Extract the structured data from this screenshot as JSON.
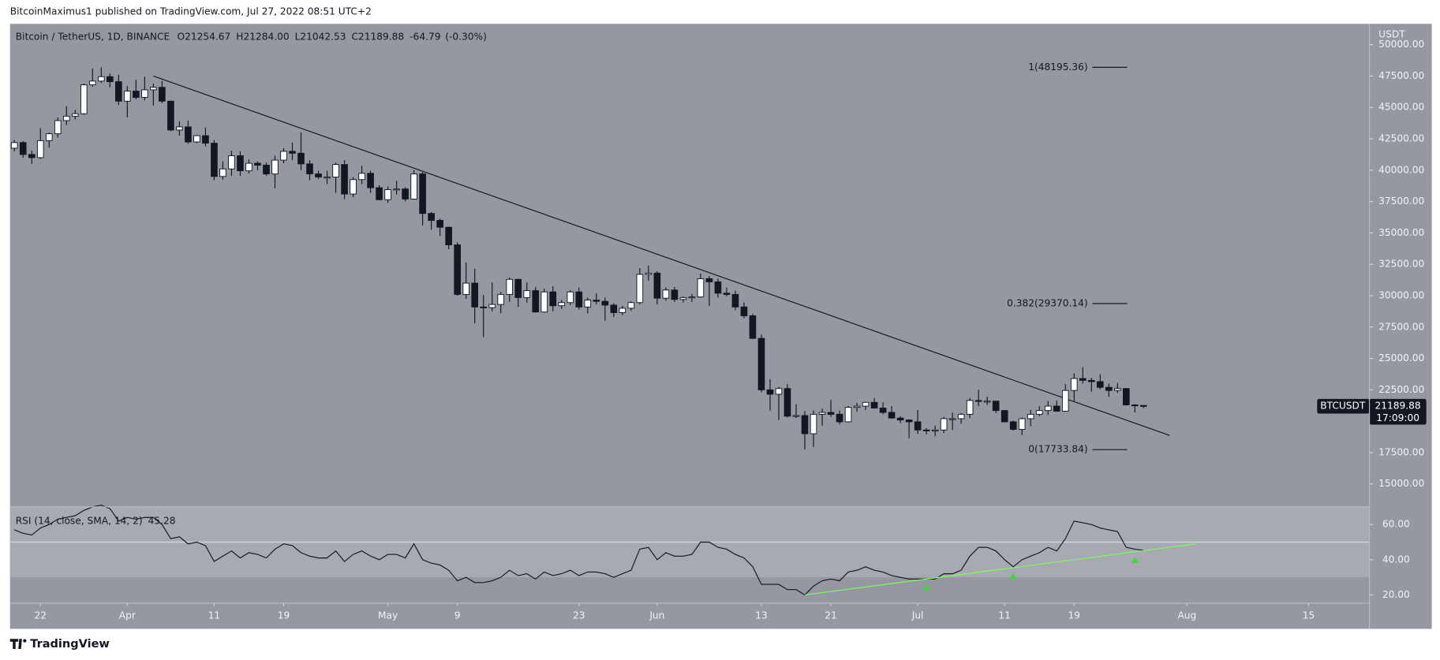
{
  "header": {
    "published": "BitcoinMaximus1 published on TradingView.com, Jul 27, 2022 08:51 UTC+2"
  },
  "footer": {
    "brand": "TradingView"
  },
  "chart_data": {
    "type": "candlestick",
    "title": "Bitcoin / TetherUS, 1D, BINANCE",
    "legend": {
      "labels": [
        "O",
        "H",
        "L",
        "C"
      ],
      "values": [
        "21254.67",
        "21284.00",
        "21042.53",
        "21189.88"
      ],
      "change": -64.79,
      "change_percent": {
        "value": -0.3,
        "label": "(-0.30%)"
      }
    },
    "symbol": "BTCUSDT",
    "last_price": "21189.88",
    "countdown": "17:09:00",
    "currency": "USDT",
    "xlim": [
      "2022-03-18T12:00:00",
      "2022-08-22T00:00:00"
    ],
    "xticks": [
      {
        "value": "2022-03-22",
        "label": "22"
      },
      {
        "value": "2022-04-01",
        "label": "Apr"
      },
      {
        "value": "2022-04-11",
        "label": "11"
      },
      {
        "value": "2022-04-19",
        "label": "19"
      },
      {
        "value": "2022-05-01",
        "label": "May"
      },
      {
        "value": "2022-05-09",
        "label": "9"
      },
      {
        "value": "2022-05-23",
        "label": "23"
      },
      {
        "value": "2022-06-01",
        "label": "Jun"
      },
      {
        "value": "2022-06-13",
        "label": "13"
      },
      {
        "value": "2022-06-21",
        "label": "21"
      },
      {
        "value": "2022-07-01",
        "label": "Jul"
      },
      {
        "value": "2022-07-11",
        "label": "11"
      },
      {
        "value": "2022-07-19",
        "label": "19"
      },
      {
        "value": "2022-08-01",
        "label": "Aug"
      },
      {
        "value": "2022-08-15",
        "label": "15"
      }
    ],
    "ylim": [
      13170,
      51660
    ],
    "yticks": [
      {
        "value": 15000,
        "label": "15000.00"
      },
      {
        "value": 17500,
        "label": "17500.00"
      },
      {
        "value": 20000,
        "label": "20000.00"
      },
      {
        "value": 22500,
        "label": "22500.00"
      },
      {
        "value": 25000,
        "label": "25000.00"
      },
      {
        "value": 27500,
        "label": "27500.00"
      },
      {
        "value": 30000,
        "label": "30000.00"
      },
      {
        "value": 32500,
        "label": "32500.00"
      },
      {
        "value": 35000,
        "label": "35000.00"
      },
      {
        "value": 37500,
        "label": "37500.00"
      },
      {
        "value": 40000,
        "label": "40000.00"
      },
      {
        "value": 42500,
        "label": "42500.00"
      },
      {
        "value": 45000,
        "label": "45000.00"
      },
      {
        "value": 47500,
        "label": "47500.00"
      },
      {
        "value": 50000,
        "label": "50000.00"
      }
    ],
    "up_color": "#ffffff",
    "down_color": "#131722",
    "background": "#9598a1",
    "x": [
      "2022-03-19",
      "2022-03-20",
      "2022-03-21",
      "2022-03-22",
      "2022-03-23",
      "2022-03-24",
      "2022-03-25",
      "2022-03-26",
      "2022-03-27",
      "2022-03-28",
      "2022-03-29",
      "2022-03-30",
      "2022-03-31",
      "2022-04-01",
      "2022-04-02",
      "2022-04-03",
      "2022-04-04",
      "2022-04-05",
      "2022-04-06",
      "2022-04-07",
      "2022-04-08",
      "2022-04-09",
      "2022-04-10",
      "2022-04-11",
      "2022-04-12",
      "2022-04-13",
      "2022-04-14",
      "2022-04-15",
      "2022-04-16",
      "2022-04-17",
      "2022-04-18",
      "2022-04-19",
      "2022-04-20",
      "2022-04-21",
      "2022-04-22",
      "2022-04-23",
      "2022-04-24",
      "2022-04-25",
      "2022-04-26",
      "2022-04-27",
      "2022-04-28",
      "2022-04-29",
      "2022-04-30",
      "2022-05-01",
      "2022-05-02",
      "2022-05-03",
      "2022-05-04",
      "2022-05-05",
      "2022-05-06",
      "2022-05-07",
      "2022-05-08",
      "2022-05-09",
      "2022-05-10",
      "2022-05-11",
      "2022-05-12",
      "2022-05-13",
      "2022-05-14",
      "2022-05-15",
      "2022-05-16",
      "2022-05-17",
      "2022-05-18",
      "2022-05-19",
      "2022-05-20",
      "2022-05-21",
      "2022-05-22",
      "2022-05-23",
      "2022-05-24",
      "2022-05-25",
      "2022-05-26",
      "2022-05-27",
      "2022-05-28",
      "2022-05-29",
      "2022-05-30",
      "2022-05-31",
      "2022-06-01",
      "2022-06-02",
      "2022-06-03",
      "2022-06-04",
      "2022-06-05",
      "2022-06-06",
      "2022-06-07",
      "2022-06-08",
      "2022-06-09",
      "2022-06-10",
      "2022-06-11",
      "2022-06-12",
      "2022-06-13",
      "2022-06-14",
      "2022-06-15",
      "2022-06-16",
      "2022-06-17",
      "2022-06-18",
      "2022-06-19",
      "2022-06-20",
      "2022-06-21",
      "2022-06-22",
      "2022-06-23",
      "2022-06-24",
      "2022-06-25",
      "2022-06-26",
      "2022-06-27",
      "2022-06-28",
      "2022-06-29",
      "2022-06-30",
      "2022-07-01",
      "2022-07-02",
      "2022-07-03",
      "2022-07-04",
      "2022-07-05",
      "2022-07-06",
      "2022-07-07",
      "2022-07-08",
      "2022-07-09",
      "2022-07-10",
      "2022-07-11",
      "2022-07-12",
      "2022-07-13",
      "2022-07-14",
      "2022-07-15",
      "2022-07-16",
      "2022-07-17",
      "2022-07-18",
      "2022-07-19",
      "2022-07-20",
      "2022-07-21",
      "2022-07-22",
      "2022-07-23",
      "2022-07-24",
      "2022-07-25",
      "2022-07-26",
      "2022-07-27"
    ],
    "ohlc": [
      [
        41750,
        42400,
        41500,
        42200
      ],
      [
        42200,
        42300,
        41000,
        41250
      ],
      [
        41250,
        41550,
        40500,
        41000
      ],
      [
        41000,
        43350,
        40900,
        42350
      ],
      [
        42350,
        43000,
        41800,
        42900
      ],
      [
        42900,
        44200,
        42600,
        43950
      ],
      [
        43950,
        45100,
        43600,
        44300
      ],
      [
        44300,
        44800,
        44050,
        44500
      ],
      [
        44500,
        46900,
        44400,
        46800
      ],
      [
        46800,
        48100,
        46650,
        47100
      ],
      [
        47100,
        48195,
        46950,
        47450
      ],
      [
        47450,
        47700,
        46600,
        47050
      ],
      [
        47050,
        47600,
        45200,
        45500
      ],
      [
        45500,
        46700,
        44200,
        46300
      ],
      [
        46300,
        47200,
        45650,
        45800
      ],
      [
        45800,
        47450,
        45550,
        46400
      ],
      [
        46400,
        46900,
        45150,
        46600
      ],
      [
        46600,
        47100,
        45350,
        45500
      ],
      [
        45500,
        45500,
        43100,
        43200
      ],
      [
        43200,
        43900,
        42750,
        43450
      ],
      [
        43450,
        43950,
        42100,
        42250
      ],
      [
        42250,
        42800,
        42150,
        42750
      ],
      [
        42750,
        43400,
        41900,
        42150
      ],
      [
        42150,
        42400,
        39200,
        39500
      ],
      [
        39500,
        40700,
        39250,
        40100
      ],
      [
        40100,
        41550,
        39550,
        41150
      ],
      [
        41150,
        41500,
        39550,
        39950
      ],
      [
        39950,
        40850,
        39750,
        40550
      ],
      [
        40550,
        40700,
        40000,
        40400
      ],
      [
        40400,
        40600,
        39550,
        39700
      ],
      [
        39700,
        41150,
        38550,
        40800
      ],
      [
        40800,
        41750,
        40550,
        41500
      ],
      [
        41500,
        42200,
        40800,
        41350
      ],
      [
        41350,
        43000,
        40000,
        40500
      ],
      [
        40500,
        40800,
        39200,
        39700
      ],
      [
        39700,
        39950,
        39300,
        39450
      ],
      [
        39450,
        39950,
        38900,
        39450
      ],
      [
        39450,
        40600,
        38200,
        40450
      ],
      [
        40450,
        40800,
        37700,
        38100
      ],
      [
        38100,
        39450,
        37850,
        39250
      ],
      [
        39250,
        40350,
        38900,
        39750
      ],
      [
        39750,
        39950,
        38200,
        38600
      ],
      [
        38600,
        38800,
        37600,
        37650
      ],
      [
        37650,
        38700,
        37400,
        38450
      ],
      [
        38450,
        39150,
        38050,
        38500
      ],
      [
        38500,
        38650,
        37500,
        37700
      ],
      [
        37700,
        40000,
        37650,
        39700
      ],
      [
        39700,
        39850,
        35600,
        36550
      ],
      [
        36550,
        36650,
        35250,
        36000
      ],
      [
        36000,
        36150,
        34750,
        35450
      ],
      [
        35450,
        35500,
        33700,
        34050
      ],
      [
        34050,
        34250,
        30000,
        30100
      ],
      [
        30100,
        32650,
        29750,
        31000
      ],
      [
        31000,
        32150,
        27800,
        29100
      ],
      [
        29100,
        30050,
        26700,
        29050
      ],
      [
        29050,
        31050,
        28750,
        29300
      ],
      [
        29300,
        30300,
        28600,
        30100
      ],
      [
        30100,
        31450,
        29500,
        31300
      ],
      [
        31300,
        31350,
        29100,
        29850
      ],
      [
        29850,
        31050,
        29450,
        30400
      ],
      [
        30400,
        30700,
        28650,
        28700
      ],
      [
        28700,
        30550,
        28650,
        30300
      ],
      [
        30300,
        30750,
        28750,
        29200
      ],
      [
        29200,
        29650,
        28950,
        29450
      ],
      [
        29450,
        30450,
        29250,
        30300
      ],
      [
        30300,
        30650,
        28900,
        29100
      ],
      [
        29100,
        29850,
        28600,
        29650
      ],
      [
        29650,
        30200,
        29300,
        29550
      ],
      [
        29550,
        29850,
        28000,
        29250
      ],
      [
        29250,
        29400,
        28300,
        28650
      ],
      [
        28650,
        29200,
        28450,
        29000
      ],
      [
        29000,
        29550,
        28800,
        29450
      ],
      [
        29450,
        32200,
        29300,
        31700
      ],
      [
        31700,
        32400,
        31200,
        31800
      ],
      [
        31800,
        31950,
        29300,
        29800
      ],
      [
        29800,
        30650,
        29600,
        30450
      ],
      [
        30450,
        30700,
        29500,
        29700
      ],
      [
        29700,
        29950,
        29450,
        29850
      ],
      [
        29850,
        30150,
        29500,
        29900
      ],
      [
        29900,
        31750,
        29850,
        31350
      ],
      [
        31350,
        31550,
        29200,
        31100
      ],
      [
        31100,
        31350,
        29850,
        30200
      ],
      [
        30200,
        30650,
        29950,
        30100
      ],
      [
        30100,
        30400,
        28850,
        29100
      ],
      [
        29100,
        29450,
        28200,
        28400
      ],
      [
        28400,
        28550,
        26550,
        26600
      ],
      [
        26600,
        26900,
        22300,
        22500
      ],
      [
        22500,
        23350,
        20850,
        22150
      ],
      [
        22150,
        22750,
        20100,
        22600
      ],
      [
        22600,
        22950,
        20300,
        20400
      ],
      [
        20400,
        21350,
        20250,
        20450
      ],
      [
        20450,
        20800,
        17734,
        19000
      ],
      [
        19000,
        20850,
        17950,
        20550
      ],
      [
        20550,
        21000,
        19650,
        20700
      ],
      [
        20700,
        21700,
        20350,
        20550
      ],
      [
        20550,
        20850,
        19750,
        19950
      ],
      [
        19950,
        21200,
        19900,
        21100
      ],
      [
        21100,
        21450,
        20750,
        21200
      ],
      [
        21200,
        21550,
        20900,
        21500
      ],
      [
        21500,
        21850,
        21000,
        21050
      ],
      [
        21050,
        21500,
        20550,
        20700
      ],
      [
        20700,
        21200,
        20200,
        20250
      ],
      [
        20250,
        20400,
        19850,
        20100
      ],
      [
        20100,
        20150,
        18650,
        19950
      ],
      [
        19950,
        20900,
        19000,
        19300
      ],
      [
        19300,
        19450,
        18950,
        19250
      ],
      [
        19250,
        19650,
        18800,
        19300
      ],
      [
        19300,
        20350,
        19050,
        20200
      ],
      [
        20200,
        20700,
        19300,
        20200
      ],
      [
        20200,
        20650,
        19800,
        20550
      ],
      [
        20550,
        21850,
        20250,
        21650
      ],
      [
        21650,
        22500,
        21200,
        21600
      ],
      [
        21600,
        21950,
        21300,
        21600
      ],
      [
        21600,
        21600,
        20650,
        20850
      ],
      [
        20850,
        20900,
        19900,
        19950
      ],
      [
        19950,
        20050,
        19250,
        19350
      ],
      [
        19350,
        20300,
        18900,
        20200
      ],
      [
        20200,
        20900,
        19600,
        20550
      ],
      [
        20550,
        21200,
        20400,
        20850
      ],
      [
        20850,
        21600,
        20500,
        21200
      ],
      [
        21200,
        21650,
        20750,
        20800
      ],
      [
        20800,
        22950,
        20750,
        22450
      ],
      [
        22450,
        23800,
        21600,
        23400
      ],
      [
        23400,
        24300,
        23000,
        23250
      ],
      [
        23250,
        23450,
        22350,
        23150
      ],
      [
        23150,
        23750,
        22550,
        22700
      ],
      [
        22700,
        23000,
        21950,
        22450
      ],
      [
        22450,
        23050,
        22250,
        22600
      ],
      [
        22600,
        22650,
        21250,
        21300
      ],
      [
        21300,
        21350,
        20700,
        21254.67
      ],
      [
        21254.67,
        21284,
        21042.53,
        21189.88
      ]
    ],
    "trendline": {
      "start": [
        "2022-04-04",
        47500
      ],
      "end": [
        "2022-07-30",
        18866
      ]
    },
    "fib_levels": [
      {
        "label": "1(48195.36)",
        "value": 48195.36
      },
      {
        "label": "0.382(29370.14)",
        "value": 29370.14
      },
      {
        "label": "0(17733.84)",
        "value": 17733.84
      }
    ],
    "rsi": {
      "label": "RSI (14, close, SMA, 14, 2)",
      "color": "#131722",
      "ylim": [
        15.3,
        70
      ],
      "yticks": [
        {
          "value": 20,
          "label": "20.00"
        },
        {
          "value": 40,
          "label": "40.00"
        },
        {
          "value": 60,
          "label": "60.00"
        }
      ],
      "band": [
        30,
        70
      ],
      "midline": 50,
      "values": [
        57,
        55,
        54,
        58,
        60,
        63,
        64,
        65,
        68,
        70,
        71,
        69,
        62,
        64,
        63,
        64,
        64,
        60,
        52,
        53,
        49,
        50,
        48,
        39,
        42,
        45,
        41,
        44,
        43,
        41,
        46,
        49,
        48,
        44,
        42,
        41,
        41,
        45,
        39,
        43,
        45,
        42,
        40,
        43,
        43,
        41,
        49,
        40,
        38,
        37,
        34,
        28,
        30,
        27,
        27,
        28,
        30,
        34,
        31,
        32,
        29,
        33,
        31,
        32,
        34,
        31,
        33,
        33,
        32,
        30,
        32,
        34,
        46,
        47,
        40,
        44,
        42,
        42,
        43,
        50,
        50,
        47,
        46,
        43,
        41,
        36,
        26,
        26,
        26,
        23,
        23,
        20,
        25,
        28,
        29,
        28,
        33,
        34,
        36,
        34,
        33,
        31,
        30,
        29,
        29,
        29,
        29,
        32,
        32,
        34,
        42,
        47,
        47,
        45,
        40,
        36,
        40,
        42,
        44,
        47,
        45,
        52,
        62,
        61,
        60,
        58,
        57,
        56,
        47,
        46,
        45.28
      ],
      "trendline": {
        "start": [
          "2022-06-18",
          20
        ],
        "end": [
          "2022-08-02",
          49
        ],
        "color": "#7cfc5c"
      },
      "markers": [
        "2022-07-02",
        "2022-07-12",
        "2022-07-26"
      ]
    }
  }
}
